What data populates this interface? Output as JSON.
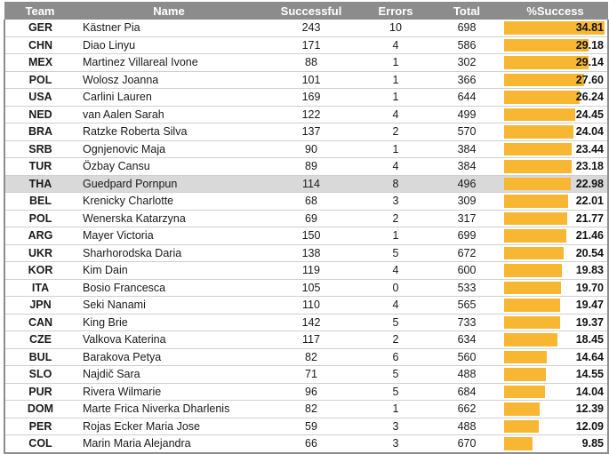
{
  "table": {
    "headers": [
      "Team",
      "Name",
      "Successful",
      "Errors",
      "Total",
      "%Success"
    ],
    "highlight_row": 9,
    "bar_color": "#f7b733",
    "header_color": "#8c8c8c",
    "rows": [
      {
        "team": "GER",
        "name": "Kästner Pia",
        "successful": "243",
        "errors": "10",
        "total": "698",
        "pct": "34.81"
      },
      {
        "team": "CHN",
        "name": "Diao Linyu",
        "successful": "171",
        "errors": "4",
        "total": "586",
        "pct": "29.18"
      },
      {
        "team": "MEX",
        "name": "Martinez Villareal Ivone",
        "successful": "88",
        "errors": "1",
        "total": "302",
        "pct": "29.14"
      },
      {
        "team": "POL",
        "name": "Wolosz Joanna",
        "successful": "101",
        "errors": "1",
        "total": "366",
        "pct": "27.60"
      },
      {
        "team": "USA",
        "name": "Carlini Lauren",
        "successful": "169",
        "errors": "1",
        "total": "644",
        "pct": "26.24"
      },
      {
        "team": "NED",
        "name": "van Aalen Sarah",
        "successful": "122",
        "errors": "4",
        "total": "499",
        "pct": "24.45"
      },
      {
        "team": "BRA",
        "name": "Ratzke Roberta Silva",
        "successful": "137",
        "errors": "2",
        "total": "570",
        "pct": "24.04"
      },
      {
        "team": "SRB",
        "name": "Ognjenovic Maja",
        "successful": "90",
        "errors": "1",
        "total": "384",
        "pct": "23.44"
      },
      {
        "team": "TUR",
        "name": "Özbay Cansu",
        "successful": "89",
        "errors": "4",
        "total": "384",
        "pct": "23.18"
      },
      {
        "team": "THA",
        "name": "Guedpard Pornpun",
        "successful": "114",
        "errors": "8",
        "total": "496",
        "pct": "22.98"
      },
      {
        "team": "BEL",
        "name": "Krenicky Charlotte",
        "successful": "68",
        "errors": "3",
        "total": "309",
        "pct": "22.01"
      },
      {
        "team": "POL",
        "name": "Wenerska Katarzyna",
        "successful": "69",
        "errors": "2",
        "total": "317",
        "pct": "21.77"
      },
      {
        "team": "ARG",
        "name": "Mayer Victoria",
        "successful": "150",
        "errors": "1",
        "total": "699",
        "pct": "21.46"
      },
      {
        "team": "UKR",
        "name": "Sharhorodska Daria",
        "successful": "138",
        "errors": "5",
        "total": "672",
        "pct": "20.54"
      },
      {
        "team": "KOR",
        "name": "Kim Dain",
        "successful": "119",
        "errors": "4",
        "total": "600",
        "pct": "19.83"
      },
      {
        "team": "ITA",
        "name": "Bosio Francesca",
        "successful": "105",
        "errors": "0",
        "total": "533",
        "pct": "19.70"
      },
      {
        "team": "JPN",
        "name": "Seki Nanami",
        "successful": "110",
        "errors": "4",
        "total": "565",
        "pct": "19.47"
      },
      {
        "team": "CAN",
        "name": "King Brie",
        "successful": "142",
        "errors": "5",
        "total": "733",
        "pct": "19.37"
      },
      {
        "team": "CZE",
        "name": "Valkova Katerina",
        "successful": "117",
        "errors": "2",
        "total": "634",
        "pct": "18.45"
      },
      {
        "team": "BUL",
        "name": "Barakova Petya",
        "successful": "82",
        "errors": "6",
        "total": "560",
        "pct": "14.64"
      },
      {
        "team": "SLO",
        "name": "Najdič Sara",
        "successful": "71",
        "errors": "5",
        "total": "488",
        "pct": "14.55"
      },
      {
        "team": "PUR",
        "name": "Rivera Wilmarie",
        "successful": "96",
        "errors": "5",
        "total": "684",
        "pct": "14.04"
      },
      {
        "team": "DOM",
        "name": "Marte Frica Niverka Dharlenis",
        "successful": "82",
        "errors": "1",
        "total": "662",
        "pct": "12.39"
      },
      {
        "team": "PER",
        "name": "Rojas Ecker Maria Jose",
        "successful": "59",
        "errors": "3",
        "total": "488",
        "pct": "12.09"
      },
      {
        "team": "COL",
        "name": "Marin Maria Alejandra",
        "successful": "66",
        "errors": "3",
        "total": "670",
        "pct": "9.85"
      }
    ]
  }
}
